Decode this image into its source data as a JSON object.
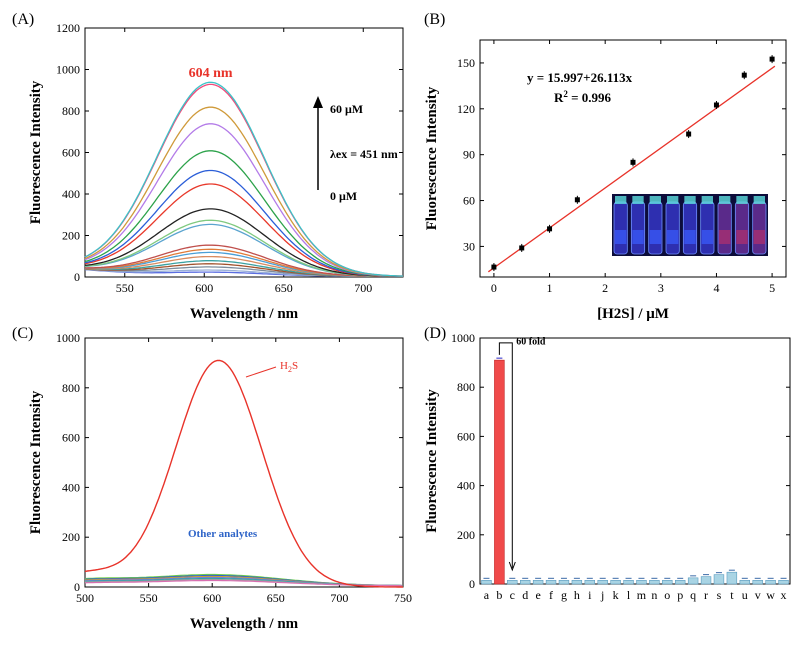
{
  "chart_data": [
    {
      "panel": "(A)",
      "type": "line",
      "xlabel": "Wavelength / nm",
      "ylabel": "Fluorescence Intensity",
      "xlim": [
        525,
        725
      ],
      "ylim": [
        0,
        1200
      ],
      "xticks": [
        550,
        600,
        650,
        700
      ],
      "yticks": [
        0,
        200,
        400,
        600,
        800,
        1000,
        1200
      ],
      "peak_label": "604 nm",
      "peak_wavelength": 604,
      "arrow_top_label": "60 μM",
      "arrow_bottom_label": "0 μM",
      "excitation_label": "λex = 451 nm",
      "curve_peaks": [
        20,
        30,
        45,
        60,
        75,
        95,
        115,
        130,
        150,
        250,
        270,
        325,
        445,
        510,
        605,
        735,
        815,
        925,
        935
      ],
      "curve_baseline_left": 40,
      "colors": [
        "#5b6ee1",
        "#9ab0d8",
        "#7c8c9c",
        "#a0522d",
        "#3aa1a1",
        "#d98b5f",
        "#4b9fd6",
        "#e07b39",
        "#c0504d",
        "#5ba4cf",
        "#7fc97f",
        "#222222",
        "#e8392b",
        "#2b5ed8",
        "#2ca24a",
        "#b37be8",
        "#cf9a3a",
        "#f24a7b",
        "#3cc3c8"
      ]
    },
    {
      "panel": "(B)",
      "type": "scatter",
      "xlabel": "[H2S] / μM",
      "ylabel": "Fluorescence Intensity",
      "xlim": [
        -0.25,
        5.25
      ],
      "ylim": [
        10,
        165
      ],
      "xticks": [
        0,
        1,
        2,
        3,
        4,
        5
      ],
      "yticks": [
        30,
        60,
        90,
        120,
        150
      ],
      "x": [
        0,
        0.5,
        1,
        1.5,
        2.5,
        3.5,
        4,
        4.5,
        5
      ],
      "y": [
        16.5,
        29,
        41.5,
        60.5,
        85,
        103.5,
        122.5,
        142,
        152.5
      ],
      "fit_intercept": 15.997,
      "fit_slope": 26.113,
      "equation": "y = 15.997+26.113x",
      "r2_label": "R",
      "r2_value": " = 0.996",
      "fit_color": "#e8332a"
    },
    {
      "panel": "(C)",
      "type": "line",
      "xlabel": "Wavelength / nm",
      "ylabel": "Fluorescence Intensity",
      "xlim": [
        500,
        750
      ],
      "ylim": [
        0,
        1000
      ],
      "xticks": [
        500,
        550,
        600,
        650,
        700,
        750
      ],
      "yticks": [
        0,
        200,
        400,
        600,
        800,
        1000
      ],
      "series": [
        {
          "name": "H2S",
          "peak": 910,
          "center": 605,
          "color": "#e8332a"
        },
        {
          "name": "Other analytes",
          "peak": 45,
          "center": 600,
          "color": "#2e64c8"
        }
      ],
      "h2s_label": "H2S",
      "other_label": "Other analytes"
    },
    {
      "panel": "(D)",
      "type": "bar",
      "ylabel": "Fluorescence Intensity",
      "ylim": [
        0,
        1000
      ],
      "yticks": [
        0,
        200,
        400,
        600,
        800,
        1000
      ],
      "categories": [
        "a",
        "b",
        "c",
        "d",
        "e",
        "f",
        "g",
        "h",
        "i",
        "j",
        "k",
        "l",
        "m",
        "n",
        "o",
        "p",
        "q",
        "r",
        "s",
        "t",
        "u",
        "v",
        "w",
        "x"
      ],
      "values": [
        15,
        910,
        15,
        15,
        15,
        15,
        15,
        15,
        15,
        15,
        15,
        15,
        15,
        15,
        15,
        15,
        25,
        30,
        38,
        48,
        15,
        15,
        15,
        15
      ],
      "highlight_index": 1,
      "highlight_color": "#f04a4a",
      "bar_color": "#a9d4e4",
      "annotation": "60 fold"
    }
  ]
}
